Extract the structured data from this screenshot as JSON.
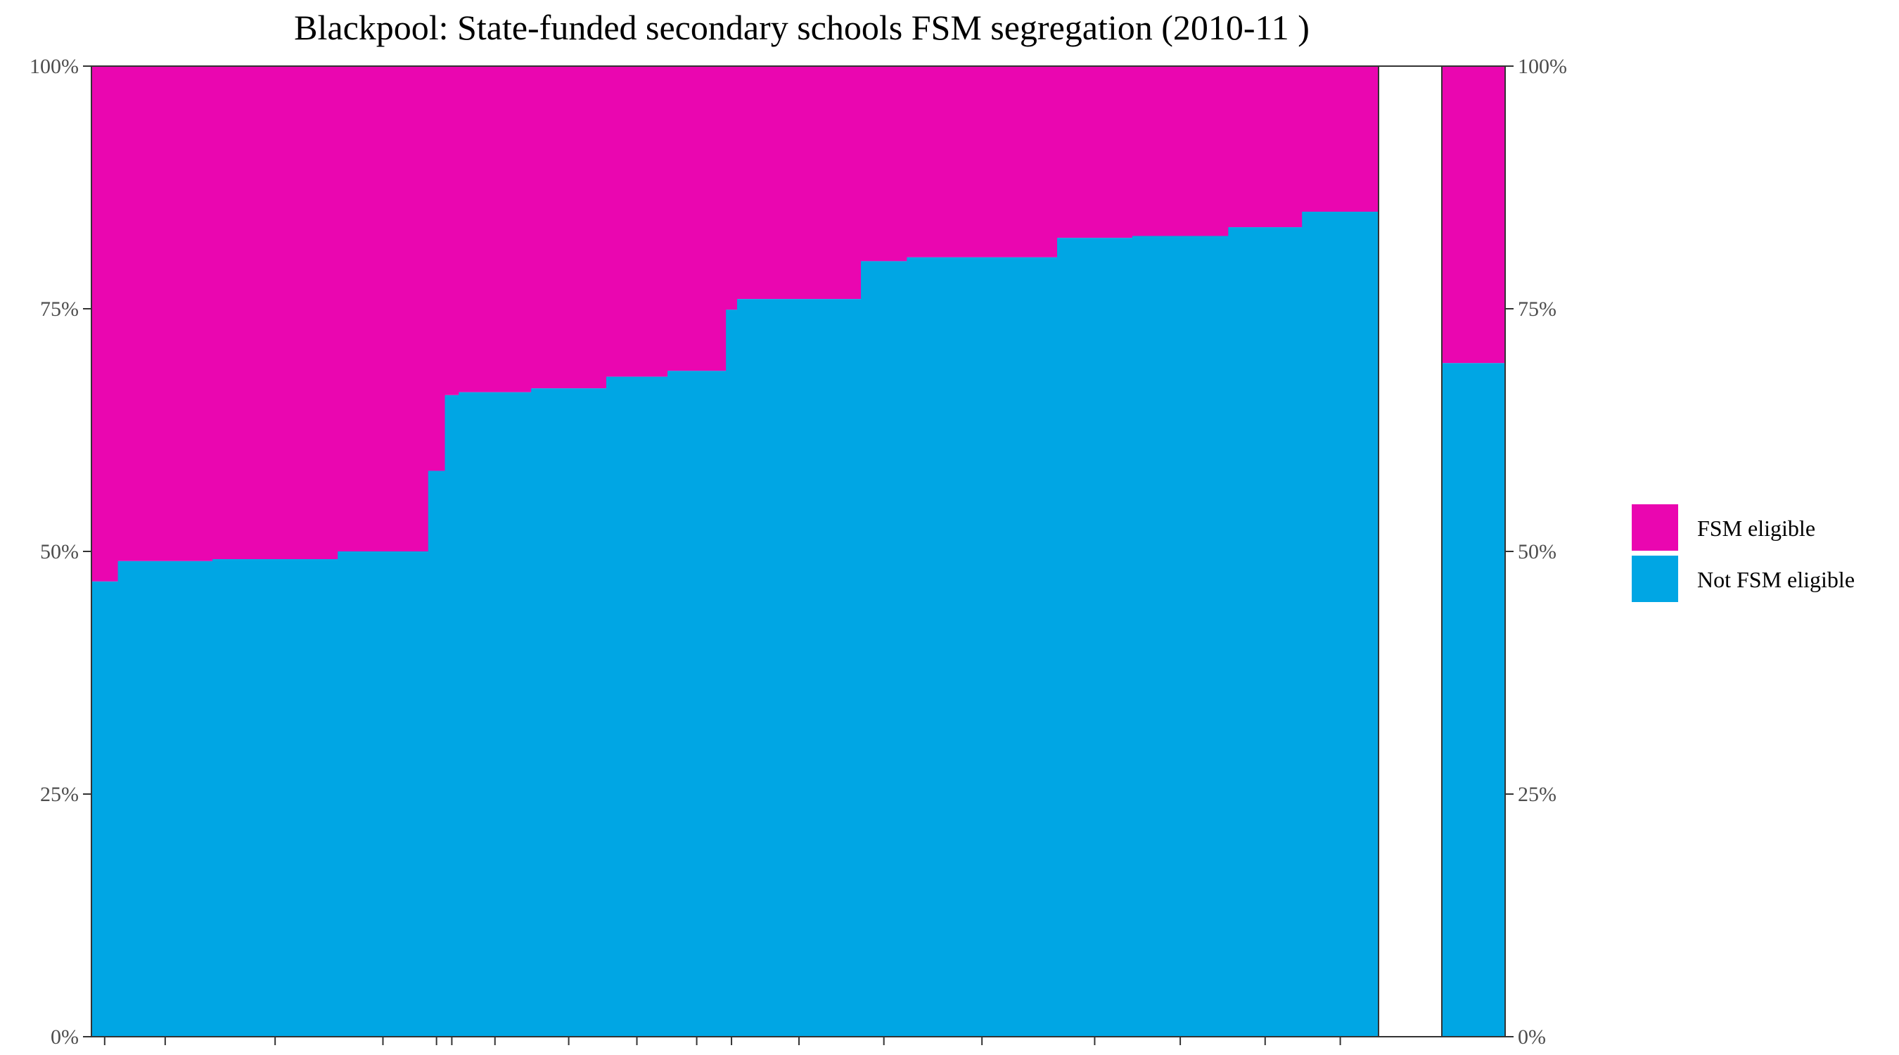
{
  "chart_data": {
    "type": "bar",
    "title": "Blackpool: State-funded secondary schools FSM segregation (2010-11 )",
    "xlabel": "",
    "ylabel": "",
    "ylim": [
      0,
      100
    ],
    "y_ticks": [
      "0%",
      "25%",
      "50%",
      "75%",
      "100%"
    ],
    "grid": false,
    "legend_position": "right",
    "colors": {
      "fsm": "#EA06B0",
      "not_fsm": "#00A6E4"
    },
    "series": [
      {
        "name": "FSM eligible",
        "color": "#EA06B0"
      },
      {
        "name": "Not FSM eligible",
        "color": "#00A6E4"
      }
    ],
    "schools": [
      {
        "pupils": 38,
        "not_fsm_pct": 46.9
      },
      {
        "pupils": 136,
        "not_fsm_pct": 49.0
      },
      {
        "pupils": 180,
        "not_fsm_pct": 49.2
      },
      {
        "pupils": 130,
        "not_fsm_pct": 50.0
      },
      {
        "pupils": 24,
        "not_fsm_pct": 58.3
      },
      {
        "pupils": 20,
        "not_fsm_pct": 66.1
      },
      {
        "pupils": 104,
        "not_fsm_pct": 66.4
      },
      {
        "pupils": 108,
        "not_fsm_pct": 66.8
      },
      {
        "pupils": 88,
        "not_fsm_pct": 68.0
      },
      {
        "pupils": 84,
        "not_fsm_pct": 68.6
      },
      {
        "pupils": 16,
        "not_fsm_pct": 74.9
      },
      {
        "pupils": 178,
        "not_fsm_pct": 76.0
      },
      {
        "pupils": 66,
        "not_fsm_pct": 79.9
      },
      {
        "pupils": 216,
        "not_fsm_pct": 80.3
      },
      {
        "pupils": 108,
        "not_fsm_pct": 82.3
      },
      {
        "pupils": 138,
        "not_fsm_pct": 82.5
      },
      {
        "pupils": 106,
        "not_fsm_pct": 83.4
      },
      {
        "pupils": 110,
        "not_fsm_pct": 85.0
      }
    ],
    "overall": {
      "not_fsm_pct": 69.4
    }
  },
  "legend": {
    "fsm_label": "FSM eligible",
    "not_fsm_label": "Not FSM eligible"
  }
}
